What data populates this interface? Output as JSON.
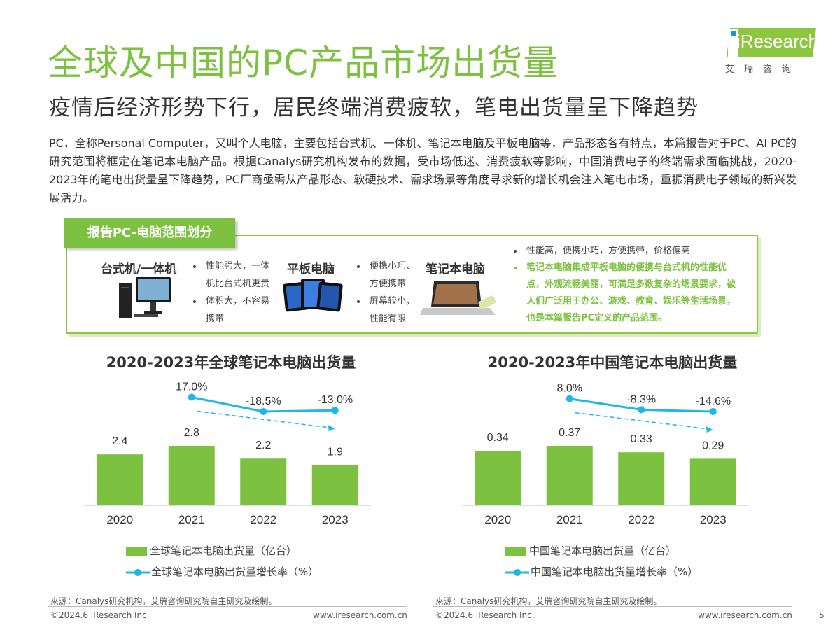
{
  "title": "全球及中国的PC产品市场出货量",
  "subtitle": "疫情后经济形势下行，居民终端消费疲软，笔电出货量呈下降趋势",
  "logo": {
    "brand": "iResearch",
    "cn": "艾瑞咨询"
  },
  "intro": "PC，全称Personal Computer，又叫个人电脑，主要包括台式机、一体机、笔记本电脑及平板电脑等，产品形态各有特点，本篇报告对于PC、AI PC的研究范围将框定在笔记本电脑产品。根据Canalys研究机构发布的数据，受市场低迷、消费疲软等影响，中国消费电子的终端需求面临挑战，2020-2023年的笔电出货量呈下降趋势，PC厂商亟需从产品形态、软硬技术、需求场景等角度寻求新的增长机会注入笔电市场，重振消费电子领域的新兴发展活力。",
  "scope": {
    "tab": "报告PC-电脑范围划分",
    "desktop": {
      "title": "台式机/一体机",
      "points": [
        "性能强大，一体机比台式机更贵",
        "体积大，不容易携带"
      ]
    },
    "tablet": {
      "title": "平板电脑",
      "points": [
        "便携小巧、方便携带",
        "屏幕较小，性能有限"
      ]
    },
    "laptop": {
      "title": "笔记本电脑",
      "points": [
        "性能高，便携小巧，方便携带，价格偏高",
        "笔记本电脑集成平板电脑的便携与台式机的性能优点，外观流畅美丽，可满足多数复杂的场景要求，被人们广泛用于办公、游戏、教育、娱乐等生活场景，也是本篇报告PC定义的产品范围。"
      ]
    }
  },
  "colors": {
    "brand_green": "#7cc13f",
    "bar": "#7cc13f",
    "line": "#1fb6e8"
  },
  "chart_data": [
    {
      "type": "bar",
      "title": "2020-2023年全球笔记本电脑出货量",
      "categories": [
        "2020",
        "2021",
        "2022",
        "2023"
      ],
      "series": [
        {
          "name": "全球笔记本电脑出货量（亿台）",
          "type": "bar",
          "values": [
            2.4,
            2.8,
            2.2,
            1.9
          ],
          "labels": [
            "2.4",
            "2.8",
            "2.2",
            "1.9"
          ]
        },
        {
          "name": "全球笔记本电脑出货量增长率（%）",
          "type": "line",
          "x": [
            "2021",
            "2022",
            "2023"
          ],
          "values": [
            17.0,
            -18.5,
            -13.0
          ],
          "labels": [
            "17.0%",
            "-18.5%",
            "-13.0%"
          ]
        }
      ],
      "trend_arrow": "down",
      "source": "来源：Canalys研究机构，艾瑞咨询研究院自主研究及绘制。"
    },
    {
      "type": "bar",
      "title": "2020-2023年中国笔记本电脑出货量",
      "categories": [
        "2020",
        "2021",
        "2022",
        "2023"
      ],
      "series": [
        {
          "name": "中国笔记本电脑出货量（亿台）",
          "type": "bar",
          "values": [
            0.34,
            0.37,
            0.33,
            0.29
          ],
          "labels": [
            "0.34",
            "0.37",
            "0.33",
            "0.29"
          ]
        },
        {
          "name": "中国笔记本电脑出货量增长率（%）",
          "type": "line",
          "x": [
            "2021",
            "2022",
            "2023"
          ],
          "values": [
            8.0,
            -8.3,
            -14.6
          ],
          "labels": [
            "8.0%",
            "-8.3%",
            "-14.6%"
          ]
        }
      ],
      "trend_arrow": "down",
      "source": "来源：Canalys研究机构，艾瑞咨询研究院自主研究及绘制。"
    }
  ],
  "footer": {
    "copyright": "©2024.6 iResearch Inc.",
    "url": "www.iresearch.com.cn",
    "page": "5"
  }
}
